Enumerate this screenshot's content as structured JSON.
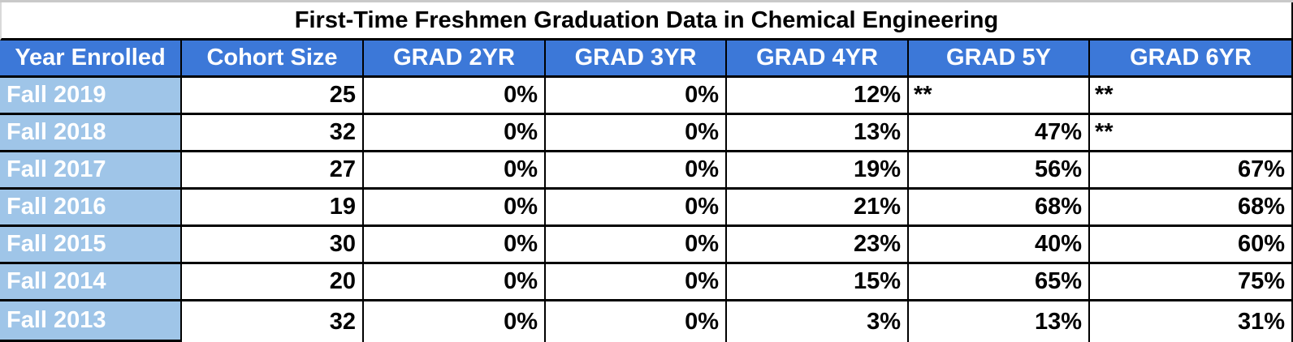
{
  "title": "First-Time Freshmen Graduation Data in Chemical Engineering",
  "chart_data": {
    "type": "table",
    "title": "First-Time Freshmen Graduation Data in Chemical Engineering",
    "columns": [
      "Year Enrolled",
      "Cohort Size",
      "GRAD 2YR",
      "GRAD 3YR",
      "GRAD 4YR",
      "GRAD 5Y",
      "GRAD 6YR"
    ],
    "rows": [
      [
        "Fall 2019",
        "25",
        "0%",
        "0%",
        "12%",
        "**",
        "**"
      ],
      [
        "Fall 2018",
        "32",
        "0%",
        "0%",
        "13%",
        "47%",
        "**"
      ],
      [
        "Fall 2017",
        "27",
        "0%",
        "0%",
        "19%",
        "56%",
        "67%"
      ],
      [
        "Fall 2016",
        "19",
        "0%",
        "0%",
        "21%",
        "68%",
        "68%"
      ],
      [
        "Fall 2015",
        "30",
        "0%",
        "0%",
        "23%",
        "40%",
        "60%"
      ],
      [
        "Fall 2014",
        "20",
        "0%",
        "0%",
        "15%",
        "65%",
        "75%"
      ],
      [
        "Fall 2013",
        "32",
        "0%",
        "0%",
        "3%",
        "13%",
        "31%"
      ]
    ]
  },
  "colors": {
    "header_bg": "#3c78d8",
    "header_text": "#ffffff",
    "year_col_bg": "#9fc5e8",
    "year_col_text": "#ffffff",
    "cell_bg": "#ffffff",
    "cell_text": "#000000",
    "title_text": "#000000",
    "border": "#000000",
    "top_strip": "#c9c9c9"
  }
}
